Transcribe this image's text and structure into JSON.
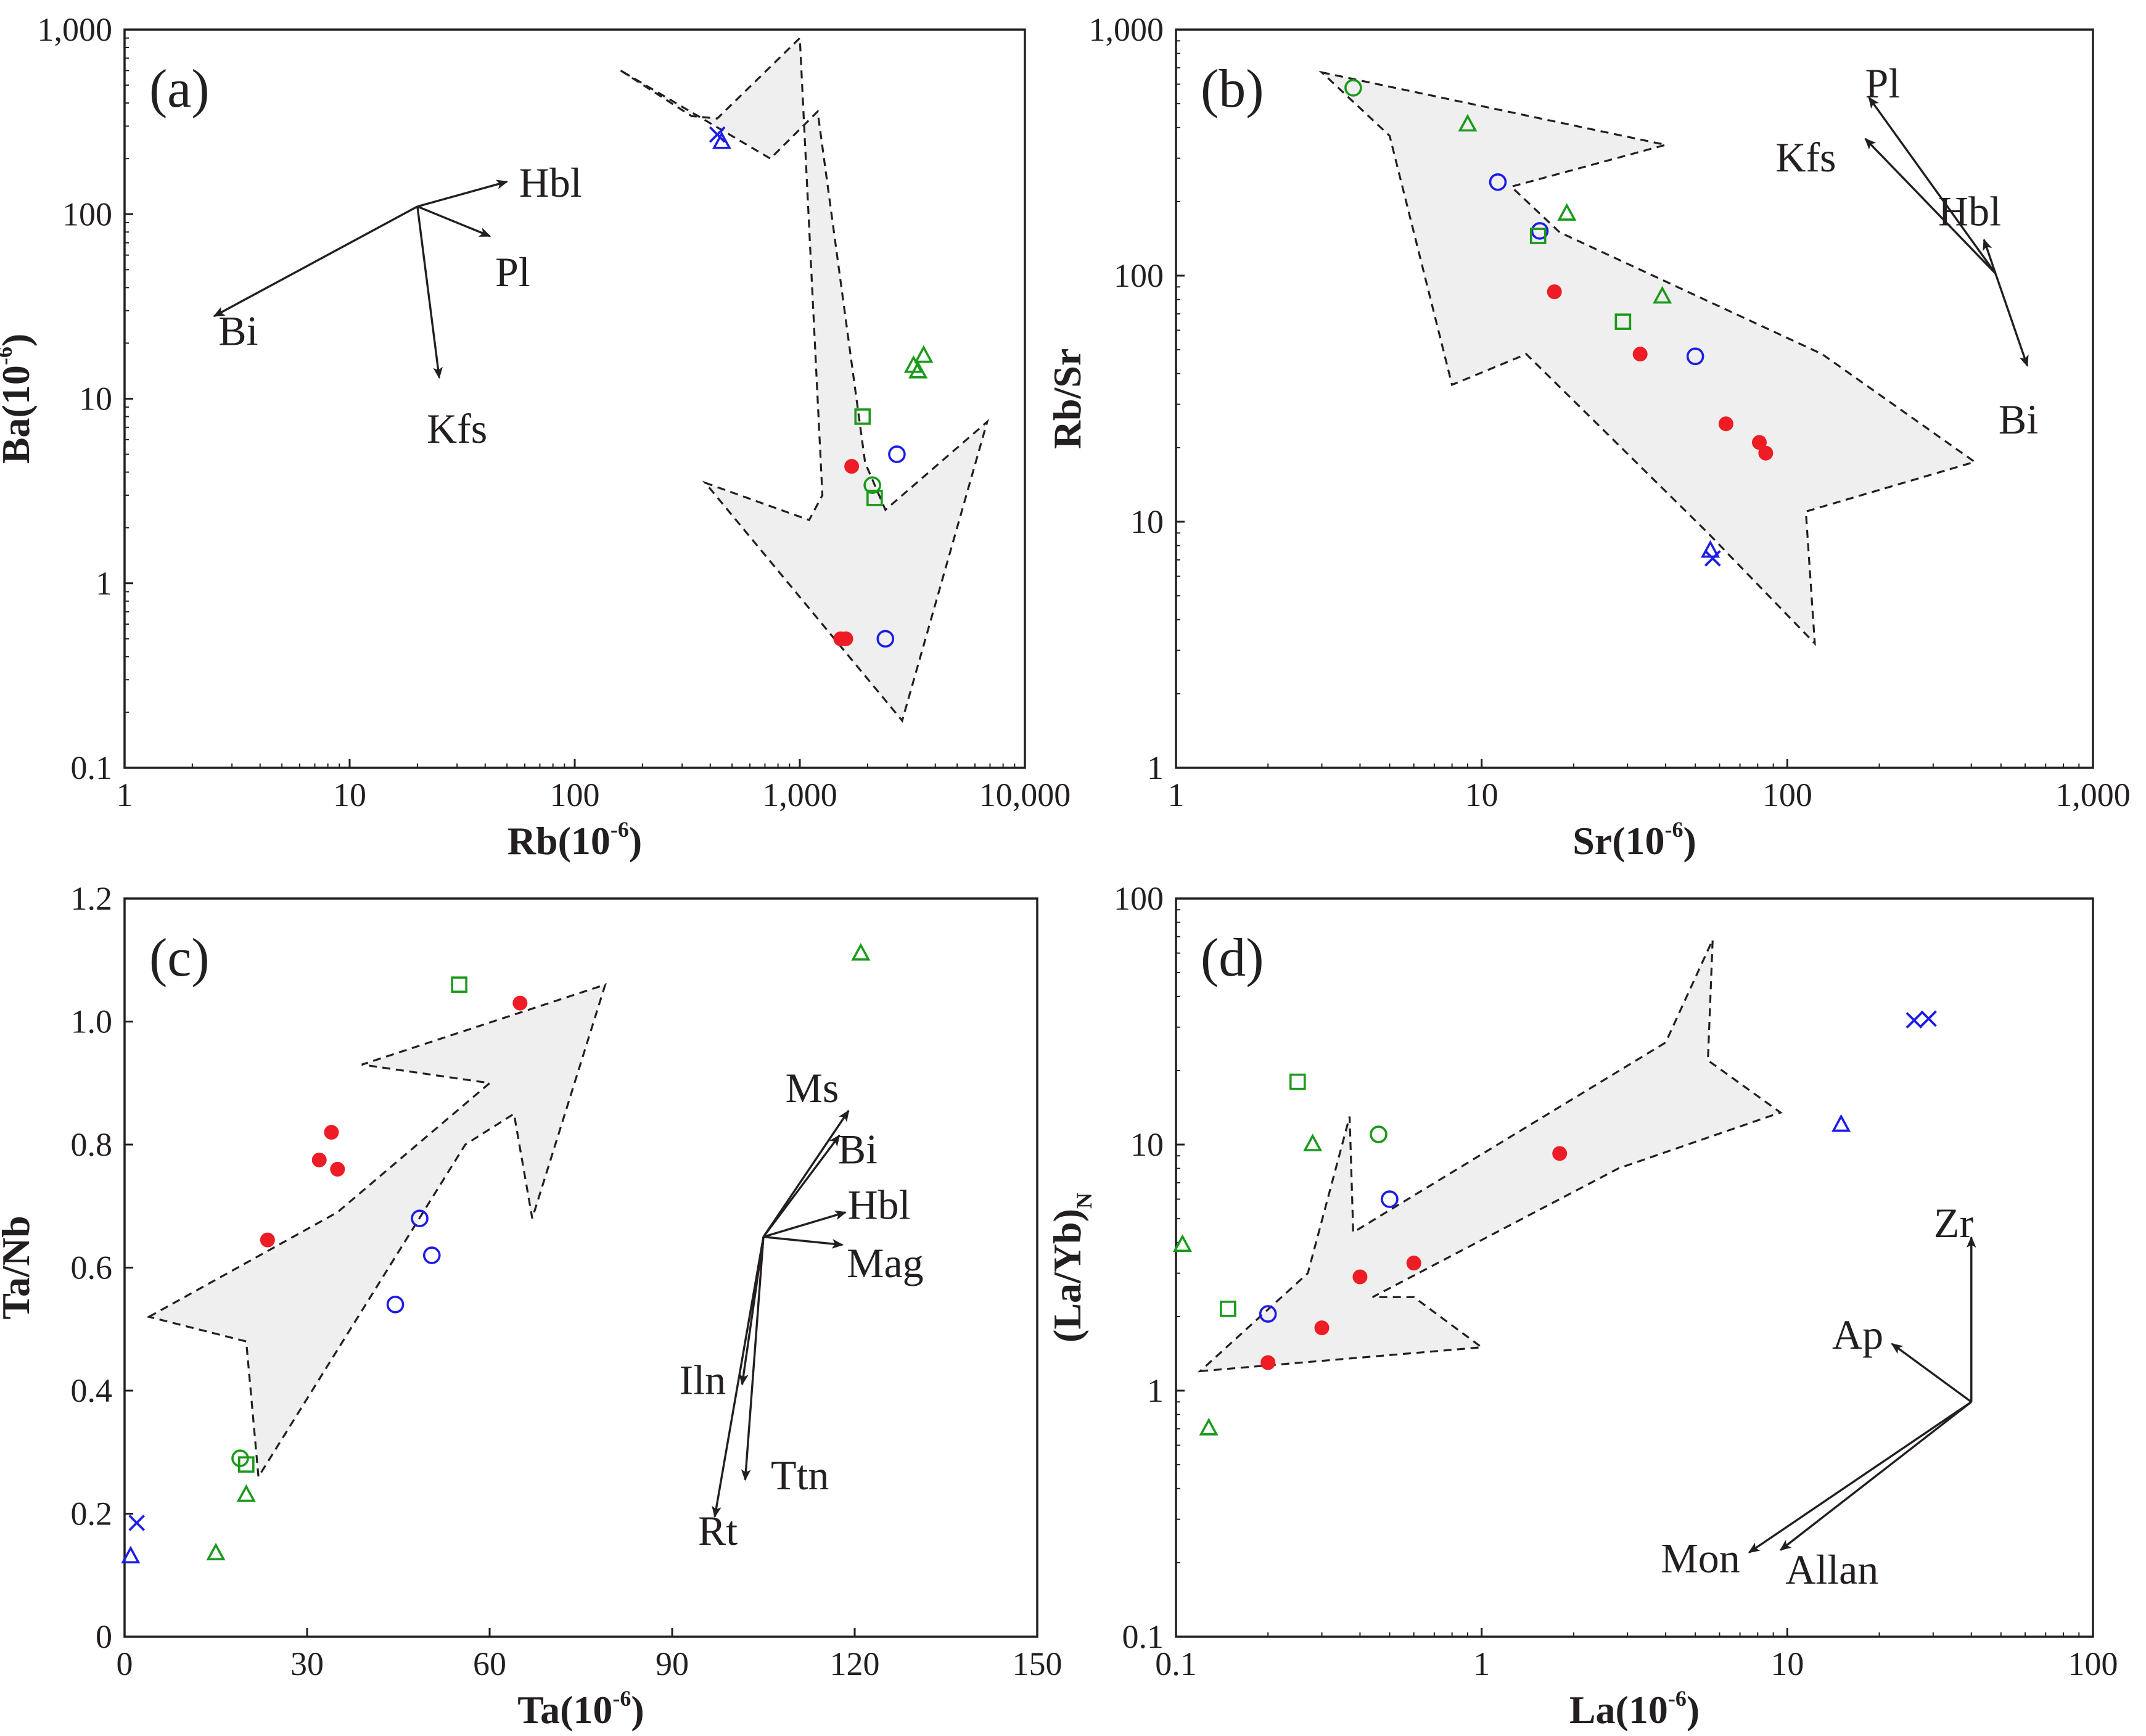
{
  "colors": {
    "red": "#ee1c25",
    "green": "#1a9a1a",
    "blue": "#1c1ce6",
    "ink": "#231f20",
    "fill": "#efefef"
  },
  "chart_data": [
    {
      "id": "a",
      "type": "scatter",
      "panel_label": "(a)",
      "xscale": "log",
      "yscale": "log",
      "xlim": [
        1,
        10000
      ],
      "ylim": [
        0.1,
        1000
      ],
      "xticks": [
        1,
        10,
        100,
        1000,
        10000
      ],
      "xtick_labels": [
        "1",
        "10",
        "100",
        "1,000",
        "10,000"
      ],
      "yticks": [
        0.1,
        1,
        10,
        100,
        1000
      ],
      "ytick_labels": [
        "0.1",
        "1",
        "10",
        "100",
        "1,000"
      ],
      "xlabel": "Rb(10",
      "ylabel": "Ba(10",
      "unit_exp": "-6",
      "points": [
        {
          "marker": "x",
          "color": "blue",
          "x": 430,
          "y": 270
        },
        {
          "marker": "triangle",
          "color": "blue",
          "x": 450,
          "y": 245
        },
        {
          "marker": "square",
          "color": "green",
          "x": 1900,
          "y": 8
        },
        {
          "marker": "circle",
          "color": "green",
          "x": 2100,
          "y": 3.4
        },
        {
          "marker": "square",
          "color": "green",
          "x": 2150,
          "y": 2.9
        },
        {
          "marker": "triangle",
          "color": "green",
          "x": 3200,
          "y": 15
        },
        {
          "marker": "triangle",
          "color": "green",
          "x": 3350,
          "y": 14
        },
        {
          "marker": "triangle",
          "color": "green",
          "x": 3550,
          "y": 17
        },
        {
          "marker": "circle",
          "color": "blue",
          "x": 2700,
          "y": 5
        },
        {
          "marker": "circle",
          "color": "blue",
          "x": 2400,
          "y": 0.5
        },
        {
          "marker": "dot",
          "color": "red",
          "x": 1700,
          "y": 4.3
        },
        {
          "marker": "dot",
          "color": "red",
          "x": 1520,
          "y": 0.5
        },
        {
          "marker": "dot",
          "color": "red",
          "x": 1600,
          "y": 0.5
        }
      ],
      "arrow_polygon": [
        [
          160,
          600
        ],
        [
          330,
          340
        ],
        [
          430,
          330
        ],
        [
          1000,
          900
        ],
        [
          1260,
          3
        ],
        [
          1100,
          2.2
        ],
        [
          380,
          3.5
        ],
        [
          2850,
          0.18
        ],
        [
          6800,
          7.5
        ],
        [
          2400,
          2.5
        ],
        [
          1950,
          4.5
        ],
        [
          1200,
          360
        ],
        [
          740,
          200
        ]
      ],
      "vectors": {
        "origin": [
          20,
          110
        ],
        "items": [
          {
            "label": "Hbl",
            "tip": [
              50,
              150
            ],
            "label_pos": [
              78,
              140
            ]
          },
          {
            "label": "Pl",
            "tip": [
              42,
              76
            ],
            "label_pos": [
              53,
              46
            ]
          },
          {
            "label": "Bi",
            "tip": [
              2.5,
              28
            ],
            "label_pos": [
              3.2,
              22
            ]
          },
          {
            "label": "Kfs",
            "tip": [
              25,
              13
            ],
            "label_pos": [
              30,
              6.5
            ]
          }
        ]
      }
    },
    {
      "id": "b",
      "type": "scatter",
      "panel_label": "(b)",
      "xscale": "log",
      "yscale": "log",
      "xlim": [
        1,
        1000
      ],
      "ylim": [
        1,
        1000
      ],
      "xticks": [
        1,
        10,
        100,
        1000
      ],
      "xtick_labels": [
        "1",
        "10",
        "100",
        "1,000"
      ],
      "yticks": [
        1,
        10,
        100,
        1000
      ],
      "ytick_labels": [
        "1",
        "10",
        "100",
        "1,000"
      ],
      "xlabel": "Sr(10",
      "ylabel": "Rb/Sr",
      "unit_exp": "-6",
      "points": [
        {
          "marker": "circle",
          "color": "green",
          "x": 3.8,
          "y": 580
        },
        {
          "marker": "triangle",
          "color": "green",
          "x": 9,
          "y": 410
        },
        {
          "marker": "circle",
          "color": "blue",
          "x": 11.3,
          "y": 240
        },
        {
          "marker": "triangle",
          "color": "green",
          "x": 19,
          "y": 178
        },
        {
          "marker": "circle",
          "color": "blue",
          "x": 15.5,
          "y": 152
        },
        {
          "marker": "square",
          "color": "green",
          "x": 15.3,
          "y": 145
        },
        {
          "marker": "triangle",
          "color": "green",
          "x": 39,
          "y": 82
        },
        {
          "marker": "square",
          "color": "green",
          "x": 29,
          "y": 65
        },
        {
          "marker": "circle",
          "color": "blue",
          "x": 50,
          "y": 47
        },
        {
          "marker": "triangle",
          "color": "blue",
          "x": 56,
          "y": 7.6
        },
        {
          "marker": "x",
          "color": "blue",
          "x": 57,
          "y": 7.1
        },
        {
          "marker": "dot",
          "color": "red",
          "x": 17.3,
          "y": 86
        },
        {
          "marker": "dot",
          "color": "red",
          "x": 33,
          "y": 48
        },
        {
          "marker": "dot",
          "color": "red",
          "x": 63,
          "y": 25
        },
        {
          "marker": "dot",
          "color": "red",
          "x": 81,
          "y": 21
        },
        {
          "marker": "dot",
          "color": "red",
          "x": 85,
          "y": 19
        }
      ],
      "arrow_polygon": [
        [
          3,
          670
        ],
        [
          40,
          340
        ],
        [
          12.5,
          230
        ],
        [
          18,
          150
        ],
        [
          130,
          48
        ],
        [
          410,
          17.5
        ],
        [
          115,
          11
        ],
        [
          123,
          3.2
        ],
        [
          55,
          9
        ],
        [
          14,
          48
        ],
        [
          8,
          36
        ],
        [
          5,
          370
        ]
      ],
      "vectors": {
        "origin": [
          480,
          102
        ],
        "items": [
          {
            "label": "Pl",
            "tip": [
              185,
              530
            ],
            "label_pos": [
              205,
              580
            ]
          },
          {
            "label": "Kfs",
            "tip": [
              180,
              360
            ],
            "label_pos": [
              115,
              290
            ]
          },
          {
            "label": "Hbl",
            "tip": [
              440,
              140
            ],
            "label_pos": [
              395,
              175
            ]
          },
          {
            "label": "Bi",
            "tip": [
              610,
              43
            ],
            "label_pos": [
              570,
              25
            ]
          }
        ]
      }
    },
    {
      "id": "c",
      "type": "scatter",
      "panel_label": "(c)",
      "xscale": "linear",
      "yscale": "linear",
      "xlim": [
        0,
        150
      ],
      "ylim": [
        0,
        1.2
      ],
      "xticks": [
        0,
        30,
        60,
        90,
        120,
        150
      ],
      "xtick_labels": [
        "0",
        "30",
        "60",
        "90",
        "120",
        "150"
      ],
      "yticks": [
        0,
        0.2,
        0.4,
        0.6,
        0.8,
        1.0,
        1.2
      ],
      "ytick_labels": [
        "0",
        "0.2",
        "0.4",
        "0.6",
        "0.8",
        "1.0",
        "1.2"
      ],
      "xlabel": "Ta(10",
      "ylabel": "Ta/Nb",
      "unit_exp": "-6",
      "points": [
        {
          "marker": "square",
          "color": "green",
          "x": 55,
          "y": 1.06
        },
        {
          "marker": "triangle",
          "color": "green",
          "x": 121,
          "y": 1.11
        },
        {
          "marker": "circle",
          "color": "green",
          "x": 19,
          "y": 0.29
        },
        {
          "marker": "square",
          "color": "green",
          "x": 20,
          "y": 0.28
        },
        {
          "marker": "triangle",
          "color": "green",
          "x": 20,
          "y": 0.23
        },
        {
          "marker": "triangle",
          "color": "green",
          "x": 15,
          "y": 0.135
        },
        {
          "marker": "x",
          "color": "blue",
          "x": 2,
          "y": 0.185
        },
        {
          "marker": "triangle",
          "color": "blue",
          "x": 1,
          "y": 0.13
        },
        {
          "marker": "circle",
          "color": "blue",
          "x": 48.5,
          "y": 0.68
        },
        {
          "marker": "circle",
          "color": "blue",
          "x": 50.5,
          "y": 0.62
        },
        {
          "marker": "circle",
          "color": "blue",
          "x": 44.5,
          "y": 0.54
        },
        {
          "marker": "dot",
          "color": "red",
          "x": 65,
          "y": 1.03
        },
        {
          "marker": "dot",
          "color": "red",
          "x": 34,
          "y": 0.82
        },
        {
          "marker": "dot",
          "color": "red",
          "x": 32,
          "y": 0.775
        },
        {
          "marker": "dot",
          "color": "red",
          "x": 35,
          "y": 0.76
        },
        {
          "marker": "dot",
          "color": "red",
          "x": 23.5,
          "y": 0.645
        }
      ],
      "arrow_polygon": [
        [
          4,
          0.52
        ],
        [
          35,
          0.69
        ],
        [
          60,
          0.9
        ],
        [
          39,
          0.93
        ],
        [
          79,
          1.06
        ],
        [
          67,
          0.68
        ],
        [
          64,
          0.85
        ],
        [
          56,
          0.8
        ],
        [
          22,
          0.26
        ],
        [
          20,
          0.48
        ]
      ],
      "vectors": {
        "origin": [
          105,
          0.65
        ],
        "items": [
          {
            "label": "Ms",
            "tip": [
              119,
              0.855
            ],
            "label_pos": [
              113,
              0.885
            ]
          },
          {
            "label": "Bi",
            "tip": [
              117.5,
              0.815
            ],
            "label_pos": [
              120.5,
              0.785
            ]
          },
          {
            "label": "Hbl",
            "tip": [
              118.5,
              0.69
            ],
            "label_pos": [
              124,
              0.695
            ]
          },
          {
            "label": "Mag",
            "tip": [
              118,
              0.637
            ],
            "label_pos": [
              125,
              0.6
            ]
          },
          {
            "label": "Iln",
            "tip": [
              101.5,
              0.41
            ],
            "label_pos": [
              95,
              0.41
            ]
          },
          {
            "label": "Ttn",
            "tip": [
              102,
              0.255
            ],
            "label_pos": [
              111,
              0.255
            ]
          },
          {
            "label": "Rt",
            "tip": [
              97,
              0.195
            ],
            "label_pos": [
              97.5,
              0.165
            ]
          }
        ]
      }
    },
    {
      "id": "d",
      "type": "scatter",
      "panel_label": "(d)",
      "xscale": "log",
      "yscale": "log",
      "xlim": [
        0.1,
        100
      ],
      "ylim": [
        0.1,
        100
      ],
      "xticks": [
        0.1,
        1,
        10,
        100
      ],
      "xtick_labels": [
        "0.1",
        "1",
        "10",
        "100"
      ],
      "yticks": [
        0.1,
        1,
        10,
        100
      ],
      "ytick_labels": [
        "0.1",
        "1",
        "10",
        "100"
      ],
      "xlabel": "La(10",
      "ylabel": "(La/Yb)",
      "ylabel_sub": "N",
      "unit_exp": "-6",
      "points": [
        {
          "marker": "x",
          "color": "blue",
          "x": 26,
          "y": 32
        },
        {
          "marker": "x",
          "color": "blue",
          "x": 29,
          "y": 32.5
        },
        {
          "marker": "triangle",
          "color": "blue",
          "x": 15,
          "y": 12
        },
        {
          "marker": "square",
          "color": "green",
          "x": 0.25,
          "y": 18
        },
        {
          "marker": "circle",
          "color": "green",
          "x": 0.46,
          "y": 11
        },
        {
          "marker": "triangle",
          "color": "green",
          "x": 0.28,
          "y": 10
        },
        {
          "marker": "triangle",
          "color": "green",
          "x": 0.105,
          "y": 3.9
        },
        {
          "marker": "square",
          "color": "green",
          "x": 0.148,
          "y": 2.15
        },
        {
          "marker": "triangle",
          "color": "green",
          "x": 0.128,
          "y": 0.7
        },
        {
          "marker": "circle",
          "color": "blue",
          "x": 0.5,
          "y": 6
        },
        {
          "marker": "circle",
          "color": "blue",
          "x": 0.2,
          "y": 2.05
        },
        {
          "marker": "dot",
          "color": "red",
          "x": 1.8,
          "y": 9.2
        },
        {
          "marker": "dot",
          "color": "red",
          "x": 0.6,
          "y": 3.3
        },
        {
          "marker": "dot",
          "color": "red",
          "x": 0.4,
          "y": 2.9
        },
        {
          "marker": "dot",
          "color": "red",
          "x": 0.3,
          "y": 1.8
        },
        {
          "marker": "dot",
          "color": "red",
          "x": 0.2,
          "y": 1.3
        }
      ],
      "arrow_polygon": [
        [
          0.12,
          1.2
        ],
        [
          1,
          1.5
        ],
        [
          0.6,
          2.4
        ],
        [
          0.44,
          2.4
        ],
        [
          2.8,
          8
        ],
        [
          9.5,
          13.5
        ],
        [
          5.5,
          22
        ],
        [
          5.7,
          68
        ],
        [
          4,
          26
        ],
        [
          0.38,
          4.4
        ],
        [
          0.37,
          13
        ],
        [
          0.27,
          3
        ]
      ],
      "vectors": {
        "origin": [
          40,
          0.9
        ],
        "items": [
          {
            "label": "Zr",
            "tip": [
              40,
              4.2
            ],
            "label_pos": [
              35,
              4.6
            ]
          },
          {
            "label": "Ap",
            "tip": [
              22,
              1.55
            ],
            "label_pos": [
              17,
              1.62
            ]
          },
          {
            "label": "Mon",
            "tip": [
              7.5,
              0.22
            ],
            "label_pos": [
              5.2,
              0.2
            ]
          },
          {
            "label": "Allan",
            "tip": [
              9.5,
              0.225
            ],
            "label_pos": [
              14,
              0.18
            ]
          }
        ]
      }
    }
  ]
}
